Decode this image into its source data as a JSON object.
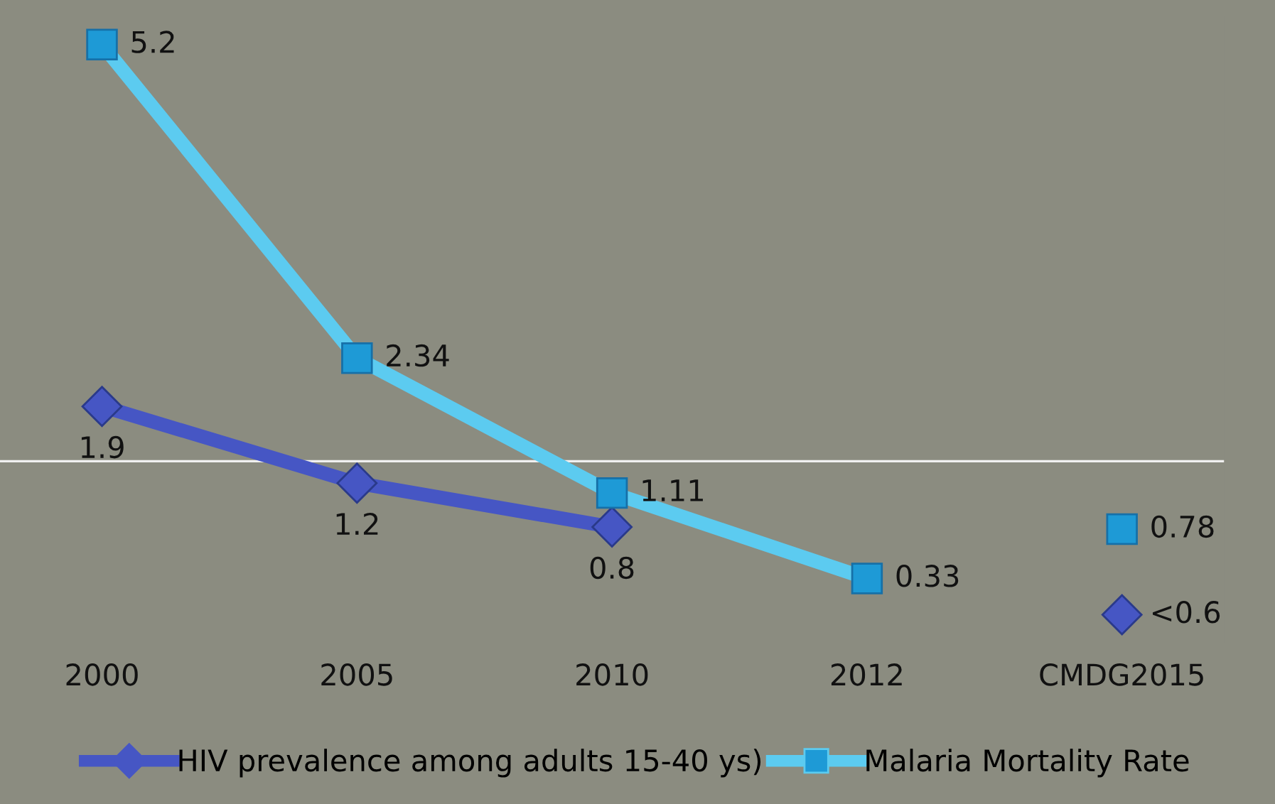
{
  "chart_data": {
    "type": "line",
    "categories": [
      "2000",
      "2005",
      "2010",
      "2012",
      "CMDG2015"
    ],
    "series": [
      {
        "name": "HIV prevalence among adults 15-40 ys)",
        "color": "#4656c4",
        "marker": "diamond",
        "values": [
          1.9,
          1.2,
          0.8,
          null,
          null
        ]
      },
      {
        "name": "Malaria Mortality Rate",
        "color": "#5ccbf0",
        "marker": "square",
        "values": [
          5.2,
          2.34,
          1.11,
          0.33,
          null
        ]
      },
      {
        "type": "scatter",
        "color": "#1e9ad6",
        "marker": "square",
        "values": [
          null,
          null,
          null,
          null,
          0.78
        ],
        "value_labels": [
          null,
          null,
          null,
          null,
          "0.78"
        ]
      },
      {
        "type": "scatter",
        "color": "#4656c4",
        "marker": "diamond",
        "values": [
          null,
          null,
          null,
          null,
          0.0
        ],
        "value_labels": [
          null,
          null,
          null,
          null,
          "<0.6"
        ]
      }
    ],
    "data_labels": true,
    "ref_lines": [
      {
        "axis": "y",
        "value": 1.4,
        "color": "#f0f0f0"
      }
    ],
    "grid": false,
    "legend": "bottom"
  }
}
